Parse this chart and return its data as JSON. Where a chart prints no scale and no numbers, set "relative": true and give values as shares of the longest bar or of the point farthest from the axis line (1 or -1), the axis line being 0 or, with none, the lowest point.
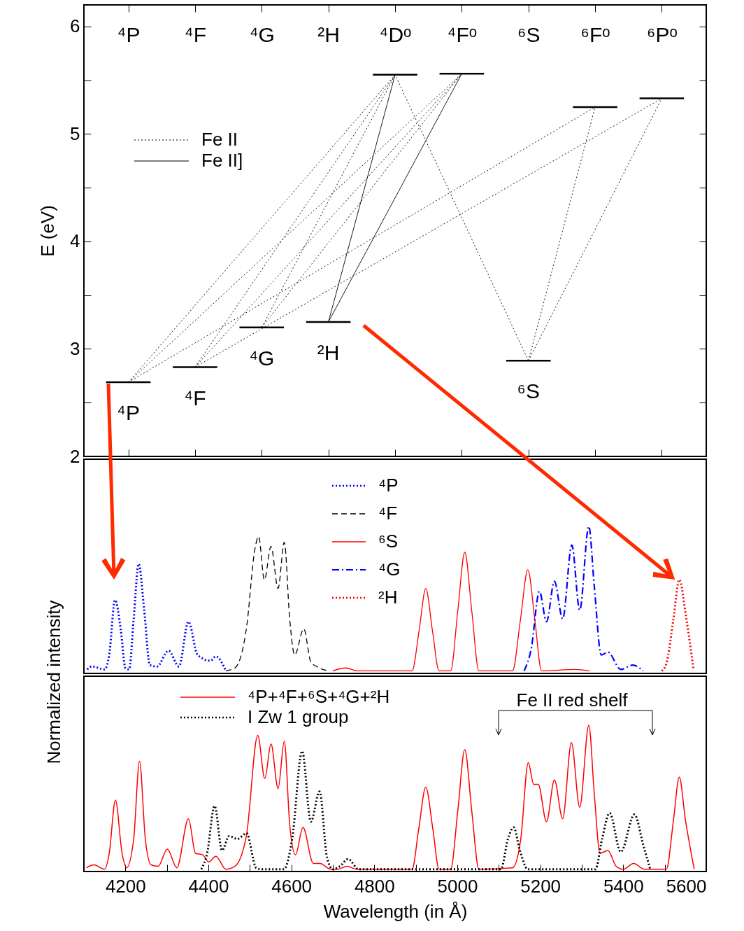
{
  "chart_data": [
    {
      "type": "line",
      "ylabel": "E (eV)",
      "categories": [
        null,
        "⁴P",
        null,
        null,
        "⁴F",
        null,
        null,
        "⁴G",
        null,
        null,
        "²H",
        null,
        null,
        "⁴Dᵒ",
        null,
        null,
        "⁴Fᵒ",
        null,
        null,
        "⁶S",
        null,
        null,
        "⁶Fᵒ",
        null,
        null,
        "⁶Pᵒ",
        null
      ],
      "ylim": [
        2,
        6.2
      ],
      "yticks": [
        2,
        {
          "value": 2.5,
          "label": null
        },
        3,
        {
          "value": 3.5,
          "label": null
        },
        4,
        {
          "value": 4.5,
          "label": null
        },
        5,
        {
          "value": 5.5,
          "label": null
        },
        6
      ],
      "legend": "top left",
      "series": [
        {
          "color": "#000000",
          "line_style": "solid",
          "values": [
            2.69,
            2.69,
            2.69,
            null,
            null,
            null,
            null,
            null,
            null,
            null,
            null,
            null,
            null,
            null,
            null,
            null,
            null,
            null,
            null,
            null,
            null,
            null,
            null,
            null,
            null,
            null,
            null
          ]
        },
        {
          "color": "#000000",
          "line_style": "solid",
          "values": [
            null,
            null,
            null,
            2.83,
            2.83,
            2.83,
            null,
            null,
            null,
            null,
            null,
            null,
            null,
            null,
            null,
            null,
            null,
            null,
            null,
            null,
            null,
            null,
            null,
            null,
            null,
            null,
            null
          ]
        },
        {
          "color": "#000000",
          "line_style": "solid",
          "values": [
            null,
            null,
            null,
            null,
            null,
            null,
            3.2,
            3.2,
            3.2,
            null,
            null,
            null,
            null,
            null,
            null,
            null,
            null,
            null,
            null,
            null,
            null,
            null,
            null,
            null,
            null,
            null,
            null
          ]
        },
        {
          "color": "#000000",
          "line_style": "solid",
          "values": [
            null,
            null,
            null,
            null,
            null,
            null,
            null,
            null,
            null,
            3.25,
            3.25,
            3.25,
            null,
            null,
            null,
            null,
            null,
            null,
            null,
            null,
            null,
            null,
            null,
            null,
            null,
            null,
            null
          ]
        },
        {
          "color": "#000000",
          "line_style": "solid",
          "values": [
            null,
            null,
            null,
            null,
            null,
            null,
            null,
            null,
            null,
            null,
            null,
            null,
            5.55,
            5.55,
            5.55,
            null,
            null,
            null,
            null,
            null,
            null,
            null,
            null,
            null,
            null,
            null,
            null
          ]
        },
        {
          "color": "#000000",
          "line_style": "solid",
          "values": [
            null,
            null,
            null,
            null,
            null,
            null,
            null,
            null,
            null,
            null,
            null,
            null,
            null,
            null,
            null,
            5.56,
            5.56,
            5.56,
            null,
            null,
            null,
            null,
            null,
            null,
            null,
            null,
            null
          ]
        },
        {
          "color": "#000000",
          "line_style": "solid",
          "values": [
            null,
            null,
            null,
            null,
            null,
            null,
            null,
            null,
            null,
            null,
            null,
            null,
            null,
            null,
            null,
            null,
            null,
            null,
            2.89,
            2.89,
            2.89,
            null,
            null,
            null,
            null,
            null,
            null
          ]
        },
        {
          "color": "#000000",
          "line_style": "solid",
          "values": [
            null,
            null,
            null,
            null,
            null,
            null,
            null,
            null,
            null,
            null,
            null,
            null,
            null,
            null,
            null,
            null,
            null,
            null,
            null,
            null,
            null,
            5.25,
            5.25,
            5.25,
            null,
            null,
            null
          ]
        },
        {
          "color": "#000000",
          "line_style": "solid",
          "values": [
            null,
            null,
            null,
            null,
            null,
            null,
            null,
            null,
            null,
            null,
            null,
            null,
            null,
            null,
            null,
            null,
            null,
            null,
            null,
            null,
            null,
            null,
            null,
            null,
            5.33,
            5.33,
            5.33
          ]
        },
        {
          "name": "Fe II",
          "line_style": "dotted",
          "color": "#000000",
          "x": [
            "⁴P",
            "⁴Dᵒ"
          ],
          "values": [
            2.69,
            5.55
          ]
        },
        {
          "line_style": "dotted",
          "color": "#000000",
          "x": [
            "⁴P",
            "⁴Fᵒ"
          ],
          "values": [
            2.69,
            5.56
          ]
        },
        {
          "line_style": "dotted",
          "color": "#000000",
          "x": [
            "⁴P",
            "⁶Fᵒ"
          ],
          "values": [
            2.69,
            5.25
          ]
        },
        {
          "line_style": "dotted",
          "color": "#000000",
          "x": [
            "⁴F",
            "⁴Dᵒ"
          ],
          "values": [
            2.83,
            5.55
          ]
        },
        {
          "line_style": "dotted",
          "color": "#000000",
          "x": [
            "⁴F",
            "⁴Fᵒ"
          ],
          "values": [
            2.83,
            5.56
          ]
        },
        {
          "line_style": "dotted",
          "color": "#000000",
          "x": [
            "⁴F",
            "⁶Pᵒ"
          ],
          "values": [
            2.83,
            5.33
          ]
        },
        {
          "line_style": "dotted",
          "color": "#000000",
          "x": [
            "⁴G",
            "⁴Dᵒ"
          ],
          "values": [
            3.2,
            5.55
          ]
        },
        {
          "line_style": "dotted",
          "color": "#000000",
          "x": [
            "⁴G",
            "⁴Fᵒ"
          ],
          "values": [
            3.2,
            5.56
          ]
        },
        {
          "line_style": "dotted",
          "color": "#000000",
          "x": [
            "⁶S",
            "⁴Dᵒ"
          ],
          "values": [
            2.89,
            5.55
          ]
        },
        {
          "line_style": "dotted",
          "color": "#000000",
          "x": [
            "⁶S",
            "⁶Fᵒ"
          ],
          "values": [
            2.89,
            5.25
          ]
        },
        {
          "line_style": "dotted",
          "color": "#000000",
          "x": [
            "⁶S",
            "⁶Pᵒ"
          ],
          "values": [
            2.89,
            5.33
          ]
        },
        {
          "name": "Fe II]",
          "line_style": "solid",
          "color": "#000000",
          "x": [
            "²H",
            "⁴Dᵒ"
          ],
          "values": [
            3.25,
            5.55
          ]
        },
        {
          "line_style": "solid",
          "color": "#000000",
          "x": [
            "²H",
            "⁴Fᵒ"
          ],
          "values": [
            3.25,
            5.56
          ]
        }
      ],
      "annotations": [
        {
          "text": "⁴P",
          "x": "⁴P",
          "y": 2.69
        },
        {
          "text": "⁴F",
          "x": "⁴F",
          "y": 2.83
        },
        {
          "text": "⁴G",
          "x": "⁴G",
          "y": 3.2
        },
        {
          "text": "²H",
          "x": "²H",
          "y": 3.25
        },
        {
          "text": "⁶S",
          "x": "⁶S",
          "y": 2.89
        }
      ]
    },
    {
      "type": "line",
      "relative": true,
      "ylabel": "Normalized intensity",
      "xlim": [
        4100,
        5600
      ],
      "tick_labels": false,
      "legend": "top",
      "series": [
        {
          "name": "⁴P",
          "color": "#0000ff",
          "line_style": "dotted",
          "x": [
            4108,
            4119,
            4150,
            4161,
            4175,
            4189,
            4200,
            4209,
            4220,
            4232,
            4245,
            4259,
            4276,
            4304,
            4329,
            4352,
            4374,
            4405,
            4418,
            4442
          ],
          "values": [
            0.01,
            0.03,
            0.01,
            0.11,
            0.49,
            0.28,
            0.02,
            0.01,
            0.36,
            0.74,
            0.43,
            0.04,
            0.03,
            0.14,
            0.03,
            0.34,
            0.11,
            0.07,
            0.1,
            0
          ]
        },
        {
          "name": "⁴F",
          "color": "#000000",
          "line_style": "dashed",
          "x": [
            4442,
            4464,
            4492,
            4512,
            4521,
            4535,
            4551,
            4568,
            4583,
            4596,
            4608,
            4630,
            4647,
            4661,
            4689
          ],
          "values": [
            0,
            0.02,
            0.3,
            0.84,
            0.93,
            0.63,
            0.86,
            0.57,
            0.89,
            0.36,
            0.11,
            0.29,
            0.06,
            0.03,
            0
          ]
        },
        {
          "name": "⁶S",
          "color": "#ff0000",
          "line_style": "solid",
          "x": [
            4700,
            4731,
            4760,
            4891,
            4908,
            4924,
            4940,
            4956,
            4984,
            5001,
            5018,
            5035,
            5052,
            5133,
            5152,
            5170,
            5187,
            5203,
            5285,
            5319
          ],
          "values": [
            0,
            0.02,
            0,
            0,
            0.28,
            0.57,
            0.28,
            0,
            0,
            0.41,
            0.82,
            0.41,
            0,
            0,
            0.35,
            0.7,
            0.35,
            0,
            0.01,
            0
          ]
        },
        {
          "name": "⁴G",
          "color": "#0000ff",
          "line_style": "dashdot",
          "x": [
            5161,
            5178,
            5198,
            5215,
            5234,
            5254,
            5276,
            5295,
            5317,
            5330,
            5347,
            5363,
            5394,
            5423,
            5448
          ],
          "values": [
            0,
            0.15,
            0.55,
            0.34,
            0.62,
            0.36,
            0.87,
            0.42,
            1,
            0.59,
            0.11,
            0.13,
            0.01,
            0.04,
            0
          ]
        },
        {
          "name": "²H",
          "color": "#ff0000",
          "line_style": "dotted",
          "x": [
            5493,
            5504,
            5521,
            5535,
            5552,
            5569
          ],
          "values": [
            0,
            0.05,
            0.36,
            0.63,
            0.36,
            0.02
          ]
        }
      ]
    },
    {
      "type": "line",
      "relative": true,
      "xlabel": "Wavelength (in Å)",
      "xlim": [
        4100,
        5600
      ],
      "xticks": [
        4200,
        {
          "value": 4300,
          "label": null
        },
        4400,
        {
          "value": 4500,
          "label": null
        },
        4600,
        {
          "value": 4700,
          "label": null
        },
        4800,
        {
          "value": 4900,
          "label": null
        },
        5000,
        {
          "value": 5100,
          "label": null
        },
        5200,
        {
          "value": 5300,
          "label": null
        },
        5400,
        {
          "value": 5500,
          "label": null
        },
        5600
      ],
      "tick_labels": "x",
      "legend": "top left",
      "series": [
        {
          "name": "⁴P+⁴F+⁶S+⁴G+²H",
          "color": "#ff0000",
          "line_style": "solid",
          "x": [
            4106,
            4124,
            4150,
            4161,
            4176,
            4192,
            4203,
            4220,
            4234,
            4248,
            4262,
            4279,
            4301,
            4324,
            4352,
            4369,
            4386,
            4401,
            4418,
            4442,
            4464,
            4492,
            4519,
            4536,
            4551,
            4568,
            4583,
            4596,
            4610,
            4628,
            4653,
            4669,
            4695,
            4712,
            4734,
            4757,
            4891,
            4907,
            4924,
            4941,
            4956,
            4984,
            5001,
            5018,
            5035,
            5052,
            5133,
            5153,
            5171,
            5184,
            5195,
            5215,
            5234,
            5254,
            5275,
            5295,
            5317,
            5330,
            5344,
            5363,
            5383,
            5400,
            5425,
            5451,
            5504,
            5521,
            5535,
            5550,
            5571
          ],
          "values": [
            0.01,
            0.03,
            0,
            0.11,
            0.48,
            0.11,
            0.01,
            0.21,
            0.75,
            0.21,
            0.03,
            0.02,
            0.14,
            0.01,
            0.35,
            0.11,
            0.1,
            0.05,
            0.09,
            0,
            0.02,
            0.24,
            0.93,
            0.63,
            0.87,
            0.56,
            0.89,
            0.31,
            0.1,
            0.29,
            0.04,
            0.04,
            0,
            0,
            0.02,
            0,
            0,
            0.28,
            0.57,
            0.28,
            0,
            0,
            0.4,
            0.83,
            0.4,
            0,
            0.01,
            0.21,
            0.74,
            0.59,
            0.59,
            0.33,
            0.62,
            0.35,
            0.88,
            0.43,
            1,
            0.53,
            0.11,
            0.13,
            0.02,
            0,
            0.04,
            0,
            0,
            0.34,
            0.64,
            0.34,
            0
          ]
        },
        {
          "name": "I Zw 1 group",
          "color": "#000000",
          "line_style": "dotted",
          "x": [
            4383,
            4397,
            4415,
            4433,
            4450,
            4470,
            4492,
            4515,
            4526,
            4582,
            4602,
            4626,
            4647,
            4668,
            4686,
            4700,
            4717,
            4737,
            4762,
            5105,
            5122,
            5136,
            5150,
            5170,
            5333,
            5349,
            5367,
            5394,
            5427,
            5448,
            5465
          ],
          "values": [
            0,
            0.11,
            0.44,
            0.13,
            0.23,
            0.21,
            0.25,
            0.01,
            0,
            0,
            0.21,
            0.82,
            0.33,
            0.54,
            0.08,
            0,
            0.02,
            0.07,
            0,
            0,
            0.21,
            0.29,
            0.14,
            0,
            0,
            0.21,
            0.39,
            0.12,
            0.38,
            0.17,
            0
          ]
        }
      ],
      "annotations": [
        "Fe II red shelf"
      ]
    }
  ]
}
